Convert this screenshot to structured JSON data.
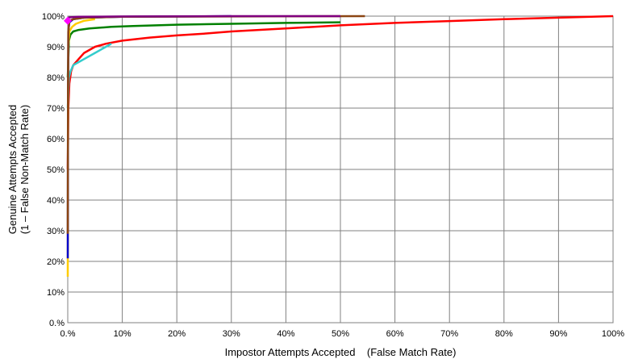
{
  "chart_data": {
    "type": "line",
    "title": "",
    "xlabel": "Impostor Attempts Accepted    (False Match Rate)",
    "ylabel_line1": "Genuine Attempts Accepted",
    "ylabel_line2": "(1 – False Non-Match Rate)",
    "xlim": [
      0,
      100
    ],
    "ylim": [
      0,
      100
    ],
    "grid": true,
    "x_ticks": [
      {
        "value": 0,
        "label": "0.%"
      },
      {
        "value": 10,
        "label": "10%"
      },
      {
        "value": 20,
        "label": "20%"
      },
      {
        "value": 30,
        "label": "30%"
      },
      {
        "value": 40,
        "label": "40%"
      },
      {
        "value": 50,
        "label": "50%"
      },
      {
        "value": 60,
        "label": "60%"
      },
      {
        "value": 70,
        "label": "70%"
      },
      {
        "value": 80,
        "label": "80%"
      },
      {
        "value": 90,
        "label": "90%"
      },
      {
        "value": 100,
        "label": "100%"
      }
    ],
    "y_ticks": [
      {
        "value": 0,
        "label": "0.%"
      },
      {
        "value": 10,
        "label": "10%"
      },
      {
        "value": 20,
        "label": "20%"
      },
      {
        "value": 30,
        "label": "30%"
      },
      {
        "value": 40,
        "label": "40%"
      },
      {
        "value": 50,
        "label": "50%"
      },
      {
        "value": 60,
        "label": "60%"
      },
      {
        "value": 70,
        "label": "70%"
      },
      {
        "value": 80,
        "label": "80%"
      },
      {
        "value": 90,
        "label": "90%"
      },
      {
        "value": 100,
        "label": "100%"
      }
    ],
    "series": [
      {
        "color": "#ff0000",
        "x": [
          0,
          0.1,
          0.3,
          0.6,
          1,
          2,
          3,
          5,
          7,
          10,
          15,
          20,
          25,
          30,
          40,
          50,
          60,
          70,
          80,
          90,
          100
        ],
        "y": [
          50,
          70,
          78,
          82,
          84,
          86,
          88,
          90,
          91,
          92,
          93,
          93.7,
          94.3,
          95,
          96,
          97,
          97.8,
          98.4,
          99,
          99.5,
          100
        ]
      },
      {
        "color": "#33cccc",
        "x": [
          0,
          0.2,
          0.5,
          1,
          2,
          3,
          4,
          5,
          6,
          7,
          8
        ],
        "y": [
          70,
          80,
          82,
          84,
          85,
          86,
          87,
          88,
          89,
          90,
          91
        ]
      },
      {
        "color": "#008000",
        "x": [
          0,
          0.2,
          0.5,
          1,
          2,
          4,
          8,
          12,
          20,
          30,
          40,
          50
        ],
        "y": [
          80,
          92,
          94,
          95,
          95.5,
          96,
          96.5,
          96.8,
          97.2,
          97.5,
          97.8,
          98
        ]
      },
      {
        "color": "#ffcc00",
        "x": [
          0,
          0.05,
          0.1,
          0.3,
          0.8,
          1.5,
          3,
          5
        ],
        "y": [
          15,
          60,
          90,
          95,
          96.5,
          97.5,
          98.5,
          99
        ]
      },
      {
        "color": "#0000cc",
        "x": [
          0,
          0.05,
          0.1,
          0.3,
          1,
          3,
          10,
          30
        ],
        "y": [
          21,
          70,
          95,
          98,
          99,
          99.5,
          99.8,
          100
        ]
      },
      {
        "color": "#8b4513",
        "x": [
          0,
          0.05,
          0.1,
          0.3,
          1,
          3,
          10,
          30,
          54.5
        ],
        "y": [
          29,
          75,
          95,
          98.5,
          99,
          99.5,
          99.8,
          99.9,
          100
        ]
      },
      {
        "color": "#800080",
        "x": [
          0,
          0.3,
          2,
          10,
          30,
          50
        ],
        "y": [
          99.3,
          99.6,
          99.8,
          99.9,
          100,
          100
        ]
      }
    ],
    "marker": {
      "color": "#ff00ff",
      "x": 0,
      "y": 98.5
    }
  }
}
